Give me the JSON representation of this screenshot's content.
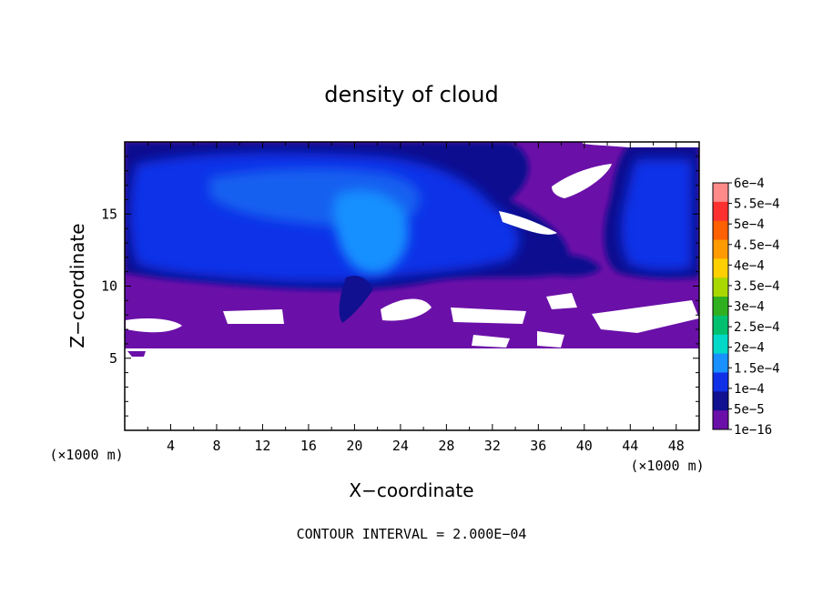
{
  "chart_data": {
    "type": "heatmap",
    "title": "density of cloud",
    "xlabel": "X−coordinate",
    "ylabel": "Z−coordinate",
    "x_unit": "(×1000 m)",
    "x_unit_right": "(×1000 m)",
    "xlim": [
      0,
      50
    ],
    "ylim": [
      0,
      20
    ],
    "x_ticks": [
      4,
      8,
      12,
      16,
      20,
      24,
      28,
      32,
      36,
      40,
      44,
      48
    ],
    "y_ticks": [
      5,
      10,
      15
    ],
    "colorbar": {
      "levels": [
        "6e−4",
        "5.5e−4",
        "5e−4",
        "4.5e−4",
        "4e−4",
        "3.5e−4",
        "3e−4",
        "2.5e−4",
        "2e−4",
        "1.5e−4",
        "1e−4",
        "5e−5",
        "1e−16"
      ],
      "colors": [
        "#ff8a8a",
        "#ff3030",
        "#ff6000",
        "#ff9a00",
        "#ffd000",
        "#a8d800",
        "#30b020",
        "#00c070",
        "#00d8c8",
        "#1890ff",
        "#1030e8",
        "#101090",
        "#6a10a8"
      ]
    },
    "regions": {
      "background_level": "1e−16",
      "cloud_core_level": "5e−5 to 1.5e−4",
      "cloud_base_z": 5.7,
      "cloud_layer_z": [
        10.5,
        19.5
      ]
    },
    "contour_interval": "CONTOUR INTERVAL = 2.000E−04"
  }
}
